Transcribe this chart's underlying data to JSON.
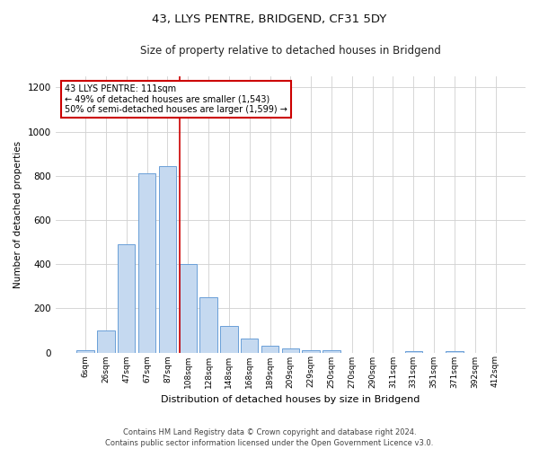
{
  "title": "43, LLYS PENTRE, BRIDGEND, CF31 5DY",
  "subtitle": "Size of property relative to detached houses in Bridgend",
  "xlabel": "Distribution of detached houses by size in Bridgend",
  "ylabel": "Number of detached properties",
  "footer_line1": "Contains HM Land Registry data © Crown copyright and database right 2024.",
  "footer_line2": "Contains public sector information licensed under the Open Government Licence v3.0.",
  "bar_color": "#c5d9f0",
  "bar_edge_color": "#6a9fd8",
  "background_color": "#ffffff",
  "grid_color": "#d0d0d0",
  "annotation_box_color": "#cc0000",
  "vline_color": "#cc0000",
  "categories": [
    "6sqm",
    "26sqm",
    "47sqm",
    "67sqm",
    "87sqm",
    "108sqm",
    "128sqm",
    "148sqm",
    "168sqm",
    "189sqm",
    "209sqm",
    "229sqm",
    "250sqm",
    "270sqm",
    "290sqm",
    "311sqm",
    "331sqm",
    "351sqm",
    "371sqm",
    "392sqm",
    "412sqm"
  ],
  "values": [
    10,
    100,
    490,
    810,
    845,
    400,
    250,
    120,
    65,
    30,
    20,
    10,
    10,
    0,
    0,
    0,
    5,
    0,
    5,
    0,
    0
  ],
  "annotation_line1": "43 LLYS PENTRE: 111sqm",
  "annotation_line2": "← 49% of detached houses are smaller (1,543)",
  "annotation_line3": "50% of semi-detached houses are larger (1,599) →",
  "vline_x_index": 5,
  "ylim": [
    0,
    1250
  ],
  "yticks": [
    0,
    200,
    400,
    600,
    800,
    1000,
    1200
  ],
  "figsize": [
    6.0,
    5.0
  ],
  "dpi": 100
}
